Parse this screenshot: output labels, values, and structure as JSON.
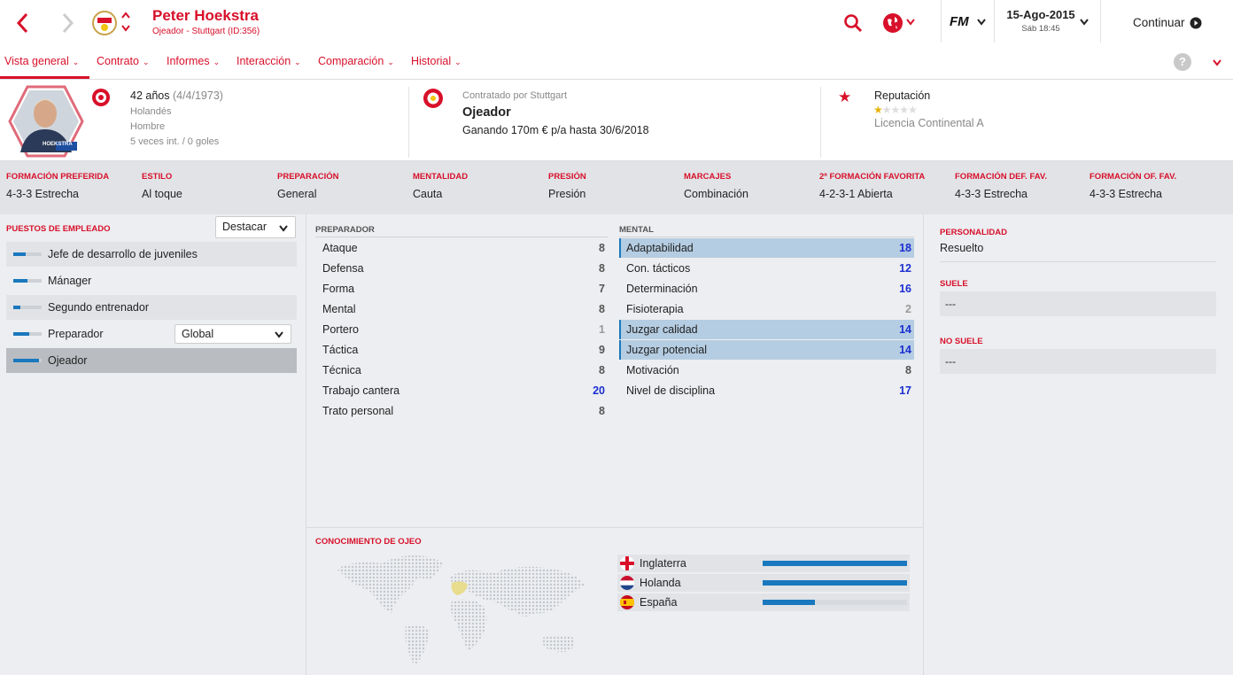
{
  "header": {
    "name": "Peter Hoekstra",
    "subtitle": "Ojeador - Stuttgart (ID:356)",
    "date": "15-Ago-2015",
    "day_time": "Sáb 18:45",
    "continue_label": "Continuar",
    "fm_logo": "FM",
    "accent": "#d8102a"
  },
  "tabs": [
    "Vista general",
    "Contrato",
    "Informes",
    "Interacción",
    "Comparación",
    "Historial"
  ],
  "help_icon": "?",
  "profile": {
    "age": "42 años",
    "dob": "(4/4/1973)",
    "nationality": "Holandés",
    "gender": "Hombre",
    "caps": "5 veces int. / 0 goles",
    "photo_caption": "HOEKSTRA",
    "contract_by": "Contratado por Stuttgart",
    "role": "Ojeador",
    "salary": "Ganando 170m € p/a hasta 30/6/2018",
    "reputation_label": "Reputación",
    "reputation_stars": 0.5,
    "license": "Licencia Continental A"
  },
  "stats": [
    {
      "label": "FORMACIÓN PREFERIDA",
      "value": "4-3-3 Estrecha"
    },
    {
      "label": "ESTILO",
      "value": "Al toque"
    },
    {
      "label": "PREPARACIÓN",
      "value": "General"
    },
    {
      "label": "MENTALIDAD",
      "value": "Cauta"
    },
    {
      "label": "PRESIÓN",
      "value": "Presión"
    },
    {
      "label": "MARCAJES",
      "value": "Combinación"
    },
    {
      "label": "2ª FORMACIÓN FAVORITA",
      "value": "4-2-3-1 Abierta"
    },
    {
      "label": "FORMACIÓN DEF. FAV.",
      "value": "4-3-3 Estrecha"
    },
    {
      "label": "FORMACIÓN OF. FAV.",
      "value": "4-3-3 Estrecha"
    }
  ],
  "roles": {
    "title": "PUESTOS DE EMPLEADO",
    "dropdown": "Destacar",
    "items": [
      {
        "label": "Jefe de desarrollo de juveniles",
        "level": 0.45
      },
      {
        "label": "Mánager",
        "level": 0.5
      },
      {
        "label": "Segundo entrenador",
        "level": 0.25
      },
      {
        "label": "Preparador",
        "level": 0.55
      },
      {
        "label": "Ojeador",
        "level": 0.9
      }
    ],
    "preparador_select": "Global"
  },
  "preparador": {
    "title": "PREPARADOR",
    "items": [
      {
        "label": "Ataque",
        "value": "8"
      },
      {
        "label": "Defensa",
        "value": "8"
      },
      {
        "label": "Forma",
        "value": "7"
      },
      {
        "label": "Mental",
        "value": "8"
      },
      {
        "label": "Portero",
        "value": "1"
      },
      {
        "label": "Táctica",
        "value": "9"
      },
      {
        "label": "Técnica",
        "value": "8"
      },
      {
        "label": "Trabajo cantera",
        "value": "20"
      },
      {
        "label": "Trato personal",
        "value": "8"
      }
    ]
  },
  "mental": {
    "title": "MENTAL",
    "items": [
      {
        "label": "Adaptabilidad",
        "value": "18"
      },
      {
        "label": "Con. tácticos",
        "value": "12"
      },
      {
        "label": "Determinación",
        "value": "16"
      },
      {
        "label": "Fisioterapia",
        "value": "2"
      },
      {
        "label": "Juzgar calidad",
        "value": "14"
      },
      {
        "label": "Juzgar potencial",
        "value": "14"
      },
      {
        "label": "Motivación",
        "value": "8"
      },
      {
        "label": "Nivel de disciplina",
        "value": "17"
      }
    ]
  },
  "personality": {
    "title": "PERSONALIDAD",
    "value": "Resuelto",
    "likes_title": "SUELE",
    "likes": "---",
    "dislikes_title": "NO SUELE",
    "dislikes": "---"
  },
  "knowledge": {
    "title": "CONOCIMIENTO DE OJEO",
    "countries": [
      {
        "name": "Inglaterra",
        "level": 1.0
      },
      {
        "name": "Holanda",
        "level": 1.0
      },
      {
        "name": "España",
        "level": 0.36
      }
    ]
  }
}
